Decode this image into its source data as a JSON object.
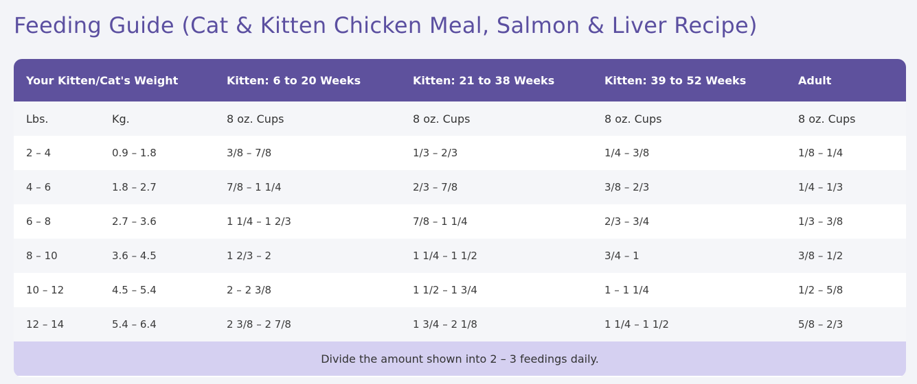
{
  "title": "Feeding Guide (Cat & Kitten Chicken Meal, Salmon & Liver Recipe)",
  "table": {
    "headers": {
      "weight": "Your Kitten/Cat's Weight",
      "kitten_6_20": "Kitten: 6 to 20 Weeks",
      "kitten_21_38": "Kitten: 21 to 38 Weeks",
      "kitten_39_52": "Kitten: 39 to 52 Weeks",
      "adult": "Adult"
    },
    "units": {
      "lbs": "Lbs.",
      "kg": "Kg.",
      "cups1": "8 oz. Cups",
      "cups2": "8 oz. Cups",
      "cups3": "8 oz. Cups",
      "cups4": "8 oz. Cups"
    },
    "rows": [
      {
        "lbs": "2 – 4",
        "kg": "0.9 – 1.8",
        "k1": "3/8 – 7/8",
        "k2": "1/3 – 2/3",
        "k3": "1/4 – 3/8",
        "adult": "1/8 – 1/4"
      },
      {
        "lbs": "4 – 6",
        "kg": "1.8 – 2.7",
        "k1": "7/8 – 1 1/4",
        "k2": "2/3 – 7/8",
        "k3": "3/8 – 2/3",
        "adult": "1/4 – 1/3"
      },
      {
        "lbs": "6 – 8",
        "kg": "2.7 – 3.6",
        "k1": "1 1/4 – 1 2/3",
        "k2": "7/8 – 1 1/4",
        "k3": "2/3 – 3/4",
        "adult": "1/3 – 3/8"
      },
      {
        "lbs": "8 – 10",
        "kg": "3.6 – 4.5",
        "k1": "1 2/3 – 2",
        "k2": "1 1/4 – 1 1/2",
        "k3": "3/4 – 1",
        "adult": "3/8 – 1/2"
      },
      {
        "lbs": "10 – 12",
        "kg": "4.5 – 5.4",
        "k1": "2 – 2 3/8",
        "k2": "1 1/2 – 1 3/4",
        "k3": "1 – 1 1/4",
        "adult": "1/2 – 5/8"
      },
      {
        "lbs": "12 – 14",
        "kg": "5.4 – 6.4",
        "k1": "2 3/8 – 2 7/8",
        "k2": "1 3/4 – 2 1/8",
        "k3": "1 1/4 – 1 1/2",
        "adult": "5/8 – 2/3"
      }
    ],
    "footer": "Divide the amount shown into 2 – 3 feedings daily."
  },
  "colors": {
    "title": "#5b4fa0",
    "header_bg": "#5e519d",
    "stripe": "#f5f6f9",
    "footer_bg": "#d5d0f1"
  }
}
